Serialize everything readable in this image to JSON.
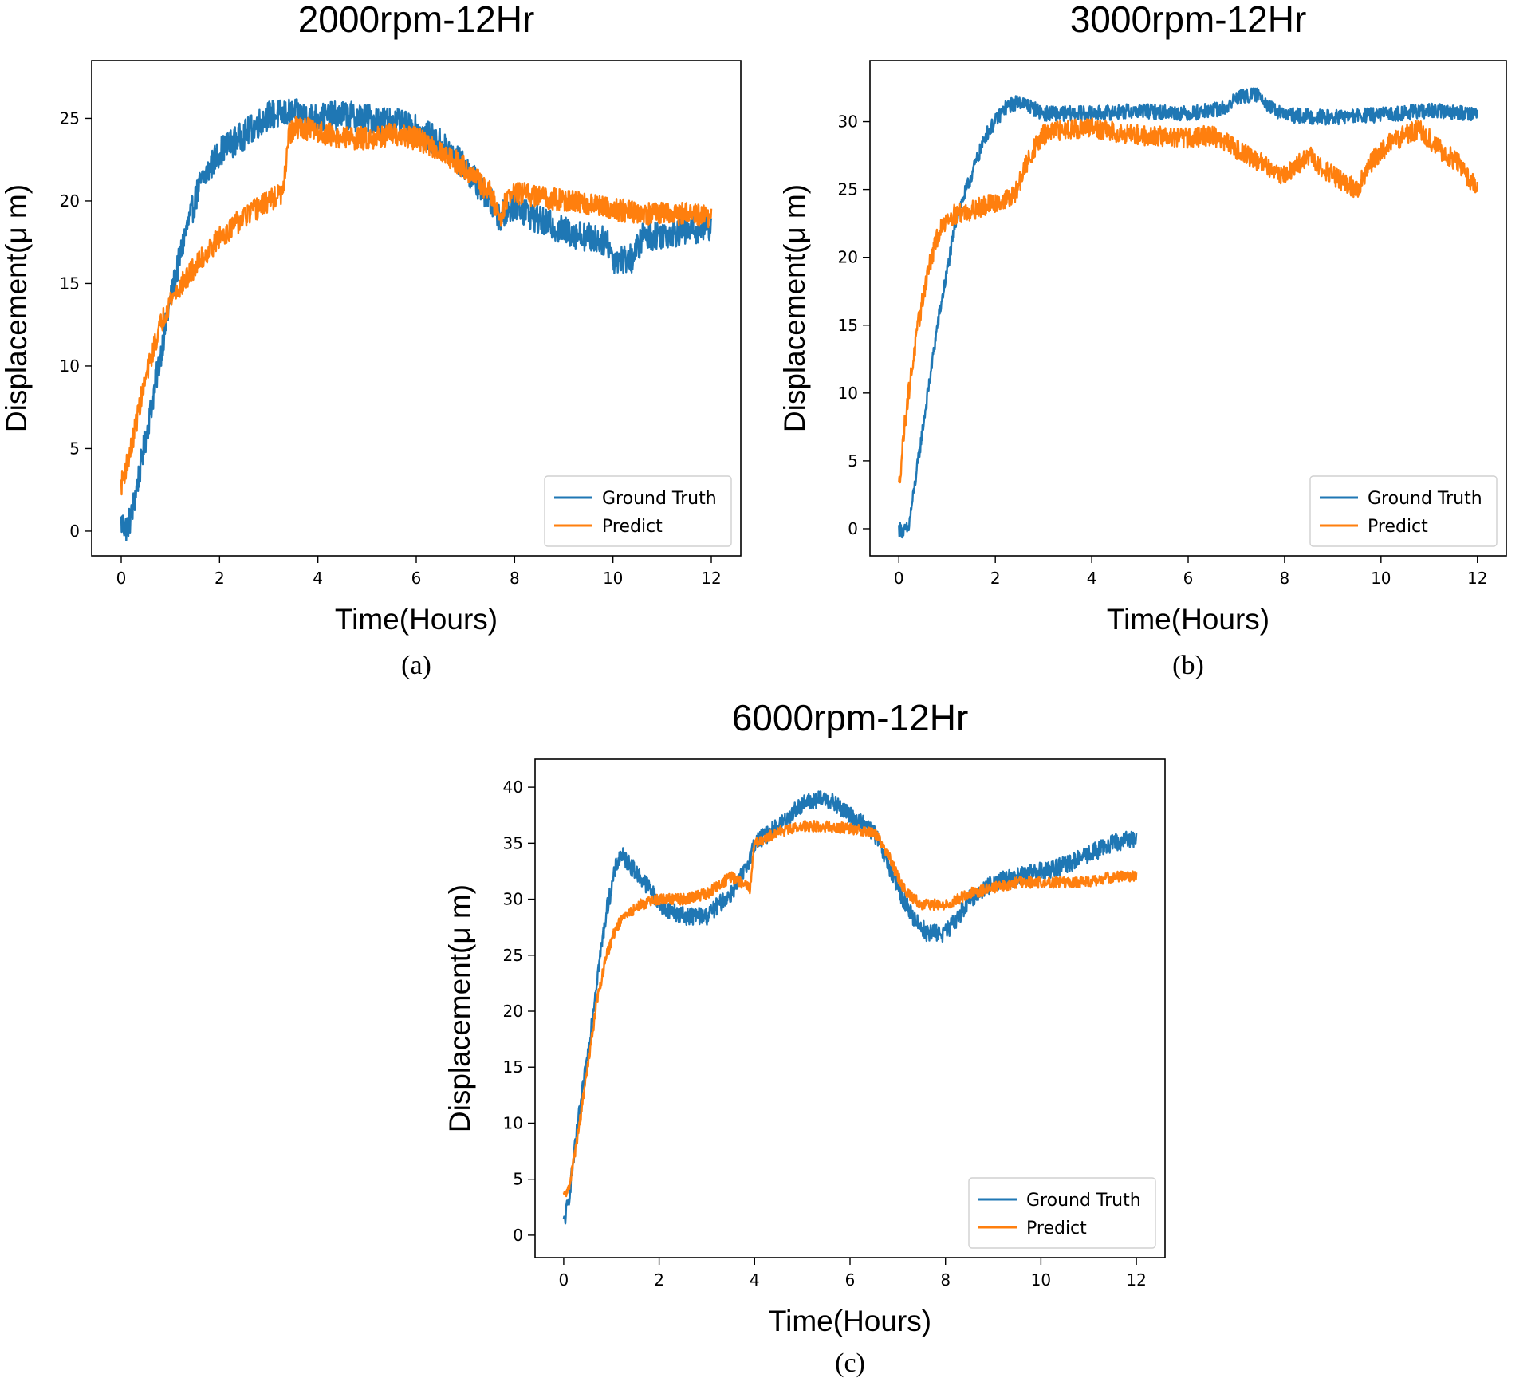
{
  "chart_data": [
    {
      "type": "line",
      "caption": "(a)",
      "title": "2000rpm-12Hr",
      "xlabel": "Time(Hours)",
      "ylabel": "Displacement(μ m)",
      "xlim": [
        -0.6,
        12.6
      ],
      "ylim": [
        -1.5,
        28.5
      ],
      "xticks": [
        "0",
        "2",
        "4",
        "6",
        "8",
        "10",
        "12"
      ],
      "yticks": [
        "0",
        "5",
        "10",
        "15",
        "20",
        "25"
      ],
      "legend": {
        "position": "lower-right",
        "entries": [
          "Ground Truth",
          "Predict"
        ]
      },
      "series": [
        {
          "name": "Ground Truth",
          "color": "#1f77b4",
          "noise": 0.9,
          "points": [
            [
              0,
              0.5
            ],
            [
              0.1,
              0.2
            ],
            [
              0.2,
              0.8
            ],
            [
              0.4,
              4
            ],
            [
              0.7,
              9
            ],
            [
              1,
              14
            ],
            [
              1.3,
              18
            ],
            [
              1.6,
              21
            ],
            [
              2,
              23
            ],
            [
              2.5,
              24
            ],
            [
              3,
              25.2
            ],
            [
              3.5,
              25.3
            ],
            [
              4,
              25
            ],
            [
              4.5,
              25.2
            ],
            [
              5,
              25
            ],
            [
              5.5,
              24.8
            ],
            [
              6,
              24.3
            ],
            [
              6.5,
              23.5
            ],
            [
              7,
              22
            ],
            [
              7.5,
              20
            ],
            [
              7.7,
              19
            ],
            [
              8,
              19.8
            ],
            [
              8.5,
              18.8
            ],
            [
              9,
              18.2
            ],
            [
              9.5,
              17.8
            ],
            [
              9.9,
              17.5
            ],
            [
              10,
              16.5
            ],
            [
              10.4,
              16.5
            ],
            [
              10.6,
              17.8
            ],
            [
              11,
              18
            ],
            [
              11.5,
              18.2
            ],
            [
              12,
              18.5
            ]
          ]
        },
        {
          "name": "Predict",
          "color": "#ff7f0e",
          "noise": 0.7,
          "points": [
            [
              0,
              2.8
            ],
            [
              0.2,
              5
            ],
            [
              0.4,
              8
            ],
            [
              0.6,
              10.5
            ],
            [
              0.8,
              12.5
            ],
            [
              1,
              14
            ],
            [
              1.5,
              16
            ],
            [
              2,
              17.8
            ],
            [
              2.5,
              19
            ],
            [
              3,
              20
            ],
            [
              3.3,
              20.5
            ],
            [
              3.4,
              24
            ],
            [
              3.6,
              24.5
            ],
            [
              4,
              24.2
            ],
            [
              4.5,
              23.8
            ],
            [
              5,
              23.8
            ],
            [
              5.5,
              24
            ],
            [
              6,
              23.8
            ],
            [
              6.5,
              23
            ],
            [
              7,
              22
            ],
            [
              7.5,
              20.5
            ],
            [
              7.7,
              19
            ],
            [
              7.9,
              20.5
            ],
            [
              8.5,
              20.3
            ],
            [
              9,
              20
            ],
            [
              9.5,
              19.8
            ],
            [
              10,
              19.5
            ],
            [
              10.5,
              19.3
            ],
            [
              11,
              19.2
            ],
            [
              11.5,
              19.2
            ],
            [
              12,
              19
            ]
          ]
        }
      ]
    },
    {
      "type": "line",
      "caption": "(b)",
      "title": "3000rpm-12Hr",
      "xlabel": "Time(Hours)",
      "ylabel": "Displacement(μ m)",
      "xlim": [
        -0.6,
        12.6
      ],
      "ylim": [
        -2,
        34.5
      ],
      "xticks": [
        "0",
        "2",
        "4",
        "6",
        "8",
        "10",
        "12"
      ],
      "yticks": [
        "0",
        "5",
        "10",
        "15",
        "20",
        "25",
        "30"
      ],
      "legend": {
        "position": "lower-right",
        "entries": [
          "Ground Truth",
          "Predict"
        ]
      },
      "series": [
        {
          "name": "Ground Truth",
          "color": "#1f77b4",
          "noise": 0.55,
          "points": [
            [
              0,
              0
            ],
            [
              0.1,
              -0.2
            ],
            [
              0.2,
              0
            ],
            [
              0.4,
              5
            ],
            [
              0.6,
              10
            ],
            [
              0.8,
              15
            ],
            [
              1,
              19
            ],
            [
              1.2,
              23
            ],
            [
              1.5,
              26
            ],
            [
              1.8,
              29
            ],
            [
              2.2,
              31
            ],
            [
              2.5,
              31.5
            ],
            [
              3,
              30.6
            ],
            [
              4,
              30.6
            ],
            [
              5,
              30.8
            ],
            [
              6,
              30.6
            ],
            [
              6.8,
              31
            ],
            [
              7,
              31.8
            ],
            [
              7.5,
              32
            ],
            [
              7.7,
              31
            ],
            [
              8,
              30.5
            ],
            [
              9,
              30.3
            ],
            [
              10,
              30.5
            ],
            [
              11,
              30.8
            ],
            [
              12,
              30.6
            ]
          ]
        },
        {
          "name": "Predict",
          "color": "#ff7f0e",
          "noise": 0.75,
          "points": [
            [
              0,
              3
            ],
            [
              0.1,
              7
            ],
            [
              0.2,
              10
            ],
            [
              0.4,
              15
            ],
            [
              0.6,
              19
            ],
            [
              0.8,
              21.5
            ],
            [
              1,
              23
            ],
            [
              1.5,
              23.5
            ],
            [
              2,
              24
            ],
            [
              2.4,
              24.5
            ],
            [
              2.6,
              26.5
            ],
            [
              2.8,
              28
            ],
            [
              3,
              29
            ],
            [
              3.5,
              29.5
            ],
            [
              4,
              29.5
            ],
            [
              5,
              29
            ],
            [
              6,
              28.8
            ],
            [
              6.5,
              29
            ],
            [
              7,
              28
            ],
            [
              7.5,
              27
            ],
            [
              8,
              26
            ],
            [
              8.5,
              27.5
            ],
            [
              9,
              26
            ],
            [
              9.5,
              25
            ],
            [
              9.8,
              27
            ],
            [
              10.2,
              28.5
            ],
            [
              10.8,
              29.5
            ],
            [
              11.2,
              28
            ],
            [
              11.6,
              27
            ],
            [
              12,
              25
            ]
          ]
        }
      ]
    },
    {
      "type": "line",
      "caption": "(c)",
      "title": "6000rpm-12Hr",
      "xlabel": "Time(Hours)",
      "ylabel": "Displacement(μ m)",
      "xlim": [
        -0.6,
        12.6
      ],
      "ylim": [
        -2,
        42.5
      ],
      "xticks": [
        "0",
        "2",
        "4",
        "6",
        "8",
        "10",
        "12"
      ],
      "yticks": [
        "0",
        "5",
        "10",
        "15",
        "20",
        "25",
        "30",
        "35",
        "40"
      ],
      "legend": {
        "position": "lower-right",
        "entries": [
          "Ground Truth",
          "Predict"
        ]
      },
      "series": [
        {
          "name": "Ground Truth",
          "color": "#1f77b4",
          "noise": 0.8,
          "points": [
            [
              0,
              1
            ],
            [
              0.1,
              3
            ],
            [
              0.3,
              10
            ],
            [
              0.5,
              16
            ],
            [
              0.7,
              23
            ],
            [
              0.9,
              29
            ],
            [
              1.1,
              33
            ],
            [
              1.2,
              34
            ],
            [
              1.5,
              32.5
            ],
            [
              1.8,
              31
            ],
            [
              2,
              29.5
            ],
            [
              2.5,
              28.5
            ],
            [
              3,
              28.5
            ],
            [
              3.5,
              30.5
            ],
            [
              3.8,
              32.5
            ],
            [
              4,
              35
            ],
            [
              4.5,
              36.5
            ],
            [
              5,
              38.5
            ],
            [
              5.5,
              39
            ],
            [
              6,
              37.5
            ],
            [
              6.5,
              36
            ],
            [
              6.8,
              33
            ],
            [
              7,
              31
            ],
            [
              7.3,
              28.5
            ],
            [
              7.6,
              27
            ],
            [
              8,
              27
            ],
            [
              8.2,
              28
            ],
            [
              8.5,
              30
            ],
            [
              9,
              31.5
            ],
            [
              9.5,
              32
            ],
            [
              10,
              32.5
            ],
            [
              10.5,
              33
            ],
            [
              11,
              34
            ],
            [
              11.5,
              35
            ],
            [
              12,
              35.5
            ]
          ]
        },
        {
          "name": "Predict",
          "color": "#ff7f0e",
          "noise": 0.5,
          "points": [
            [
              0,
              3.5
            ],
            [
              0.1,
              4
            ],
            [
              0.3,
              9
            ],
            [
              0.5,
              15
            ],
            [
              0.7,
              21
            ],
            [
              0.9,
              25
            ],
            [
              1.1,
              27.5
            ],
            [
              1.3,
              28.5
            ],
            [
              1.6,
              29.5
            ],
            [
              2,
              30
            ],
            [
              2.5,
              30
            ],
            [
              3,
              30.5
            ],
            [
              3.5,
              32
            ],
            [
              3.9,
              31
            ],
            [
              4,
              35
            ],
            [
              4.5,
              36
            ],
            [
              5,
              36.5
            ],
            [
              5.5,
              36.5
            ],
            [
              6,
              36.3
            ],
            [
              6.5,
              36
            ],
            [
              6.8,
              34
            ],
            [
              7,
              32
            ],
            [
              7.2,
              30.5
            ],
            [
              7.5,
              29.5
            ],
            [
              8,
              29.5
            ],
            [
              8.5,
              30.5
            ],
            [
              9,
              31
            ],
            [
              9.5,
              31.5
            ],
            [
              10,
              31.5
            ],
            [
              10.5,
              31.5
            ],
            [
              11,
              31.5
            ],
            [
              11.5,
              32
            ],
            [
              12,
              32
            ]
          ]
        }
      ]
    }
  ]
}
